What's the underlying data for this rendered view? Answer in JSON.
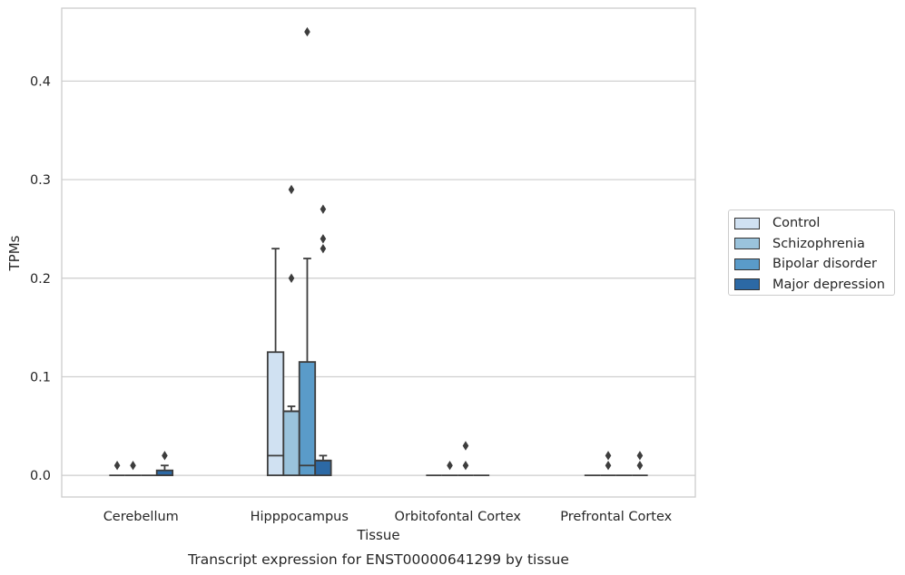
{
  "chart_data": {
    "type": "box",
    "title": "Transcript expression for ENST00000641299 by tissue",
    "xlabel": "Tissue",
    "ylabel": "TPMs",
    "ylim": [
      -0.022,
      0.474
    ],
    "yticks": [
      0.0,
      0.1,
      0.2,
      0.3,
      0.4
    ],
    "ytick_labels": [
      "0.0",
      "0.1",
      "0.2",
      "0.3",
      "0.4"
    ],
    "grid": "horizontal",
    "legend_position": "right",
    "categories": [
      "Cerebellum",
      "Hipppocampus",
      "Orbitofontal Cortex",
      "Prefrontal Cortex"
    ],
    "series": [
      {
        "name": "Control",
        "color": "#d0e1f2",
        "boxes": [
          {
            "q1": 0.0,
            "median": 0.0,
            "q3": 0.0,
            "whisker_low": 0.0,
            "whisker_high": 0.0,
            "outliers": [
              0.01
            ]
          },
          {
            "q1": 0.0,
            "median": 0.02,
            "q3": 0.125,
            "whisker_low": 0.0,
            "whisker_high": 0.23,
            "outliers": []
          },
          {
            "q1": 0.0,
            "median": 0.0,
            "q3": 0.0,
            "whisker_low": 0.0,
            "whisker_high": 0.0,
            "outliers": []
          },
          {
            "q1": 0.0,
            "median": 0.0,
            "q3": 0.0,
            "whisker_low": 0.0,
            "whisker_high": 0.0,
            "outliers": []
          }
        ]
      },
      {
        "name": "Schizophrenia",
        "color": "#9ac3dc",
        "boxes": [
          {
            "q1": 0.0,
            "median": 0.0,
            "q3": 0.0,
            "whisker_low": 0.0,
            "whisker_high": 0.0,
            "outliers": [
              0.01
            ]
          },
          {
            "q1": 0.0,
            "median": 0.065,
            "q3": 0.065,
            "whisker_low": 0.0,
            "whisker_high": 0.07,
            "outliers": [
              0.2,
              0.29
            ]
          },
          {
            "q1": 0.0,
            "median": 0.0,
            "q3": 0.0,
            "whisker_low": 0.0,
            "whisker_high": 0.0,
            "outliers": [
              0.01
            ]
          },
          {
            "q1": 0.0,
            "median": 0.0,
            "q3": 0.0,
            "whisker_low": 0.0,
            "whisker_high": 0.0,
            "outliers": [
              0.01,
              0.02
            ]
          }
        ]
      },
      {
        "name": "Bipolar disorder",
        "color": "#5a9bc9",
        "boxes": [
          {
            "q1": 0.0,
            "median": 0.0,
            "q3": 0.0,
            "whisker_low": 0.0,
            "whisker_high": 0.0,
            "outliers": []
          },
          {
            "q1": 0.0,
            "median": 0.01,
            "q3": 0.115,
            "whisker_low": 0.0,
            "whisker_high": 0.22,
            "outliers": [
              0.45
            ]
          },
          {
            "q1": 0.0,
            "median": 0.0,
            "q3": 0.0,
            "whisker_low": 0.0,
            "whisker_high": 0.0,
            "outliers": [
              0.01,
              0.03
            ]
          },
          {
            "q1": 0.0,
            "median": 0.0,
            "q3": 0.0,
            "whisker_low": 0.0,
            "whisker_high": 0.0,
            "outliers": []
          }
        ]
      },
      {
        "name": "Major depression",
        "color": "#2c69a5",
        "boxes": [
          {
            "q1": 0.0,
            "median": 0.0,
            "q3": 0.005,
            "whisker_low": 0.0,
            "whisker_high": 0.01,
            "outliers": [
              0.02
            ]
          },
          {
            "q1": 0.0,
            "median": 0.015,
            "q3": 0.015,
            "whisker_low": 0.0,
            "whisker_high": 0.02,
            "outliers": [
              0.23,
              0.24,
              0.27
            ]
          },
          {
            "q1": 0.0,
            "median": 0.0,
            "q3": 0.0,
            "whisker_low": 0.0,
            "whisker_high": 0.0,
            "outliers": []
          },
          {
            "q1": 0.0,
            "median": 0.0,
            "q3": 0.0,
            "whisker_low": 0.0,
            "whisker_high": 0.0,
            "outliers": [
              0.01,
              0.02
            ]
          }
        ]
      }
    ]
  }
}
